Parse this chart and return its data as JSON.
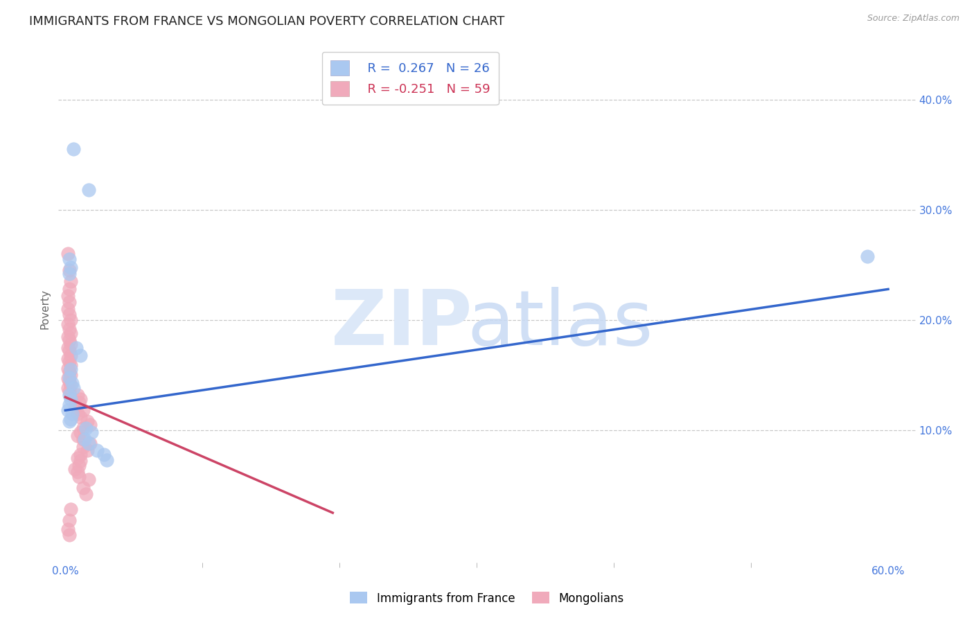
{
  "title": "IMMIGRANTS FROM FRANCE VS MONGOLIAN POVERTY CORRELATION CHART",
  "source": "Source: ZipAtlas.com",
  "ylabel": "Poverty",
  "xlim": [
    -0.005,
    0.62
  ],
  "ylim": [
    -0.02,
    0.44
  ],
  "xtick_positions": [
    0.0,
    0.6
  ],
  "xtick_labels": [
    "0.0%",
    "60.0%"
  ],
  "xtick_minor_positions": [
    0.1,
    0.2,
    0.3,
    0.4,
    0.5
  ],
  "ytick_positions": [
    0.1,
    0.2,
    0.3,
    0.4
  ],
  "ytick_labels": [
    "10.0%",
    "20.0%",
    "30.0%",
    "40.0%"
  ],
  "grid_color": "#c8c8c8",
  "background_color": "#ffffff",
  "legend_r1": "R =  0.267",
  "legend_n1": "N = 26",
  "legend_r2": "R = -0.251",
  "legend_n2": "N = 59",
  "legend_label1": "Immigrants from France",
  "legend_label2": "Mongolians",
  "blue_color": "#aac8f0",
  "pink_color": "#f0aabb",
  "blue_line_color": "#3366cc",
  "pink_line_color": "#cc4466",
  "title_fontsize": 13,
  "blue_scatter": [
    [
      0.006,
      0.355
    ],
    [
      0.017,
      0.318
    ],
    [
      0.003,
      0.255
    ],
    [
      0.004,
      0.248
    ],
    [
      0.003,
      0.242
    ],
    [
      0.008,
      0.175
    ],
    [
      0.011,
      0.168
    ],
    [
      0.004,
      0.155
    ],
    [
      0.003,
      0.148
    ],
    [
      0.005,
      0.143
    ],
    [
      0.006,
      0.138
    ],
    [
      0.003,
      0.132
    ],
    [
      0.004,
      0.128
    ],
    [
      0.003,
      0.123
    ],
    [
      0.002,
      0.118
    ],
    [
      0.005,
      0.115
    ],
    [
      0.004,
      0.11
    ],
    [
      0.003,
      0.108
    ],
    [
      0.015,
      0.102
    ],
    [
      0.019,
      0.098
    ],
    [
      0.014,
      0.092
    ],
    [
      0.017,
      0.088
    ],
    [
      0.023,
      0.082
    ],
    [
      0.028,
      0.078
    ],
    [
      0.03,
      0.073
    ],
    [
      0.585,
      0.258
    ]
  ],
  "pink_scatter": [
    [
      0.002,
      0.26
    ],
    [
      0.003,
      0.245
    ],
    [
      0.004,
      0.235
    ],
    [
      0.003,
      0.228
    ],
    [
      0.002,
      0.222
    ],
    [
      0.003,
      0.216
    ],
    [
      0.002,
      0.21
    ],
    [
      0.003,
      0.205
    ],
    [
      0.004,
      0.2
    ],
    [
      0.002,
      0.196
    ],
    [
      0.003,
      0.192
    ],
    [
      0.004,
      0.188
    ],
    [
      0.002,
      0.185
    ],
    [
      0.003,
      0.182
    ],
    [
      0.004,
      0.178
    ],
    [
      0.002,
      0.175
    ],
    [
      0.003,
      0.172
    ],
    [
      0.004,
      0.168
    ],
    [
      0.002,
      0.165
    ],
    [
      0.003,
      0.162
    ],
    [
      0.004,
      0.159
    ],
    [
      0.002,
      0.156
    ],
    [
      0.003,
      0.153
    ],
    [
      0.004,
      0.15
    ],
    [
      0.002,
      0.147
    ],
    [
      0.003,
      0.144
    ],
    [
      0.004,
      0.141
    ],
    [
      0.002,
      0.138
    ],
    [
      0.003,
      0.135
    ],
    [
      0.009,
      0.132
    ],
    [
      0.011,
      0.128
    ],
    [
      0.01,
      0.125
    ],
    [
      0.007,
      0.122
    ],
    [
      0.013,
      0.118
    ],
    [
      0.009,
      0.115
    ],
    [
      0.011,
      0.112
    ],
    [
      0.016,
      0.108
    ],
    [
      0.018,
      0.105
    ],
    [
      0.013,
      0.102
    ],
    [
      0.011,
      0.098
    ],
    [
      0.009,
      0.095
    ],
    [
      0.013,
      0.092
    ],
    [
      0.018,
      0.088
    ],
    [
      0.013,
      0.085
    ],
    [
      0.016,
      0.082
    ],
    [
      0.011,
      0.078
    ],
    [
      0.009,
      0.075
    ],
    [
      0.011,
      0.072
    ],
    [
      0.01,
      0.068
    ],
    [
      0.007,
      0.065
    ],
    [
      0.009,
      0.062
    ],
    [
      0.01,
      0.058
    ],
    [
      0.017,
      0.055
    ],
    [
      0.013,
      0.048
    ],
    [
      0.015,
      0.042
    ],
    [
      0.004,
      0.028
    ],
    [
      0.003,
      0.018
    ],
    [
      0.002,
      0.01
    ],
    [
      0.003,
      0.005
    ]
  ],
  "blue_line_x": [
    0.0,
    0.6
  ],
  "blue_line_y": [
    0.118,
    0.228
  ],
  "pink_line_x": [
    0.0,
    0.195
  ],
  "pink_line_y": [
    0.13,
    0.025
  ]
}
